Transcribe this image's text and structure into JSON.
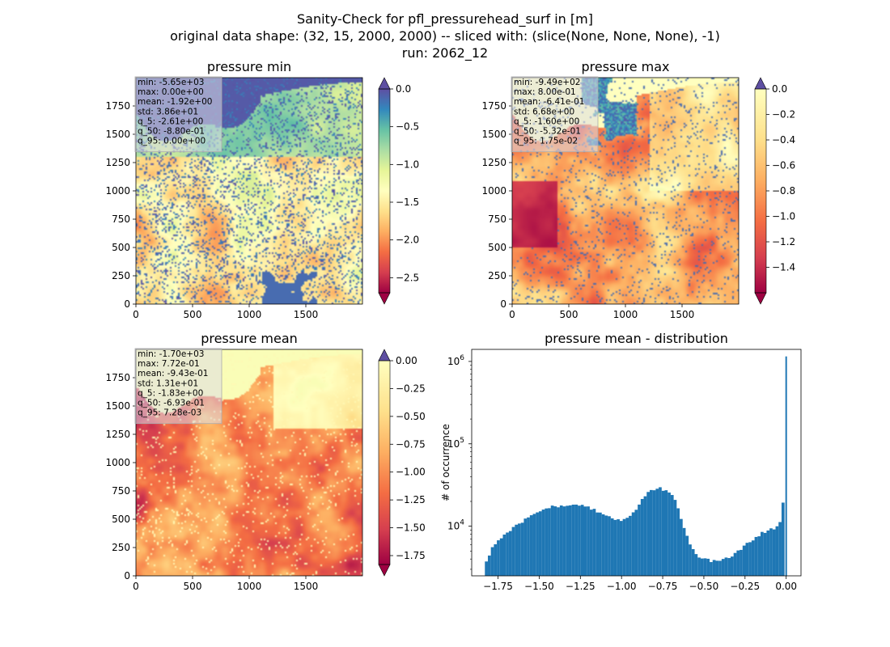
{
  "suptitle": [
    "Sanity-Check for pfl_pressurehead_surf in [m]",
    "original data shape: (32, 15, 2000, 2000) -- sliced with: (slice(None, None, None), -1)",
    "run: 2062_12"
  ],
  "chart_data": [
    {
      "type": "heatmap",
      "title": "pressure min",
      "xlim": [
        0,
        2000
      ],
      "ylim": [
        0,
        2000
      ],
      "xticks": [
        0,
        500,
        1000,
        1500
      ],
      "yticks": [
        0,
        250,
        500,
        750,
        1000,
        1250,
        1500,
        1750
      ],
      "colormap": "Spectral",
      "colorbar": {
        "min": -2.7,
        "max": 0.0,
        "ticks": [
          "0.0",
          "−0.5",
          "−1.0",
          "−1.5",
          "−2.0",
          "−2.5"
        ],
        "tick_values": [
          0.0,
          -0.5,
          -1.0,
          -1.5,
          -2.0,
          -2.5
        ],
        "extend": "both"
      },
      "stats": [
        "min: -5.65e+03",
        "max: 0.00e+00",
        "mean: -1.92e+00",
        "std: 3.86e+01",
        "q_5: -2.61e+00",
        "q_50: -8.80e-01",
        "q_95: 0.00e+00"
      ]
    },
    {
      "type": "heatmap",
      "title": "pressure max",
      "xlim": [
        0,
        2000
      ],
      "ylim": [
        0,
        2000
      ],
      "xticks": [
        0,
        500,
        1000,
        1500
      ],
      "yticks": [
        0,
        250,
        500,
        750,
        1000,
        1250,
        1500,
        1750
      ],
      "colormap": "Spectral",
      "colorbar": {
        "min": -1.6,
        "max": 0.0,
        "ticks": [
          "0.0",
          "−0.2",
          "−0.4",
          "−0.6",
          "−0.8",
          "−1.0",
          "−1.2",
          "−1.4"
        ],
        "tick_values": [
          0.0,
          -0.2,
          -0.4,
          -0.6,
          -0.8,
          -1.0,
          -1.2,
          -1.4
        ],
        "extend": "both"
      },
      "stats": [
        "min: -9.49e+02",
        "max: 8.00e-01",
        "mean: -6.41e-01",
        "std: 6.68e+00",
        "q_5: -1.60e+00",
        "q_50: -5.32e-01",
        "q_95: 1.75e-02"
      ]
    },
    {
      "type": "heatmap",
      "title": "pressure mean",
      "xlim": [
        0,
        2000
      ],
      "ylim": [
        0,
        2000
      ],
      "xticks": [
        0,
        500,
        1000,
        1500
      ],
      "yticks": [
        0,
        250,
        500,
        750,
        1000,
        1250,
        1500,
        1750
      ],
      "colormap": "Spectral",
      "colorbar": {
        "min": -1.83,
        "max": 0.0,
        "ticks": [
          "0.00",
          "−0.25",
          "−0.50",
          "−0.75",
          "−1.00",
          "−1.25",
          "−1.50",
          "−1.75"
        ],
        "tick_values": [
          0.0,
          -0.25,
          -0.5,
          -0.75,
          -1.0,
          -1.25,
          -1.5,
          -1.75
        ],
        "extend": "both"
      },
      "stats": [
        "min: -1.70e+03",
        "max: 7.72e-01",
        "mean: -9.43e-01",
        "std: 1.31e+01",
        "q_5: -1.83e+00",
        "q_50: -6.93e-01",
        "q_95: 7.28e-03"
      ]
    },
    {
      "type": "bar",
      "title": "pressure mean - distribution",
      "ylabel": "# of occurrence",
      "xlim": [
        -1.91,
        0.09
      ],
      "ylim": [
        2500,
        1400000
      ],
      "yscale": "log",
      "xticks": [
        -1.75,
        -1.5,
        -1.25,
        -1.0,
        -0.75,
        -0.5,
        -0.25,
        0.0
      ],
      "xtick_labels": [
        "−1.75",
        "−1.50",
        "−1.25",
        "−1.00",
        "−0.75",
        "−0.50",
        "−0.25",
        "0.00"
      ],
      "yticks": [
        10000,
        100000,
        1000000
      ],
      "color": "#1f77b4",
      "x": [
        -1.83,
        -0.01
      ],
      "curve": [
        [
          -1.83,
          3300
        ],
        [
          -1.81,
          4200
        ],
        [
          -1.79,
          5200
        ],
        [
          -1.75,
          6600
        ],
        [
          -1.7,
          8200
        ],
        [
          -1.65,
          10000
        ],
        [
          -1.6,
          11500
        ],
        [
          -1.55,
          13500
        ],
        [
          -1.5,
          15500
        ],
        [
          -1.45,
          16800
        ],
        [
          -1.4,
          17500
        ],
        [
          -1.35,
          18000
        ],
        [
          -1.3,
          18300
        ],
        [
          -1.25,
          17800
        ],
        [
          -1.2,
          16800
        ],
        [
          -1.15,
          15200
        ],
        [
          -1.1,
          13500
        ],
        [
          -1.05,
          12500
        ],
        [
          -1.0,
          11700
        ],
        [
          -0.96,
          12500
        ],
        [
          -0.92,
          15500
        ],
        [
          -0.88,
          20000
        ],
        [
          -0.84,
          25000
        ],
        [
          -0.8,
          28500
        ],
        [
          -0.78,
          29500
        ],
        [
          -0.75,
          28000
        ],
        [
          -0.72,
          26000
        ],
        [
          -0.68,
          22000
        ],
        [
          -0.65,
          15000
        ],
        [
          -0.62,
          9500
        ],
        [
          -0.58,
          6000
        ],
        [
          -0.55,
          4500
        ],
        [
          -0.5,
          4000
        ],
        [
          -0.45,
          3800
        ],
        [
          -0.4,
          3800
        ],
        [
          -0.35,
          4100
        ],
        [
          -0.3,
          4800
        ],
        [
          -0.25,
          5900
        ],
        [
          -0.2,
          7000
        ],
        [
          -0.15,
          8200
        ],
        [
          -0.1,
          9000
        ],
        [
          -0.06,
          9800
        ],
        [
          -0.04,
          11000
        ],
        [
          -0.03,
          13000
        ],
        [
          -0.02,
          18000
        ],
        [
          -0.01,
          40000
        ]
      ],
      "spikes": [
        [
          0.0,
          1150000
        ]
      ]
    }
  ]
}
